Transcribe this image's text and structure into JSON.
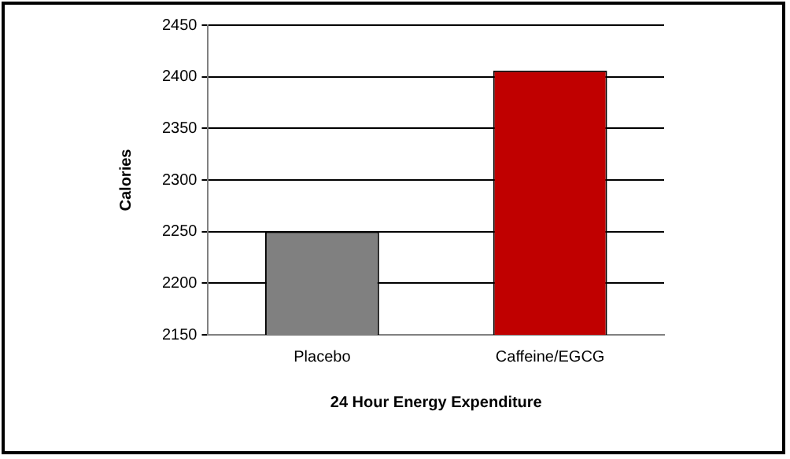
{
  "chart_data": {
    "type": "bar",
    "xlabel": "24 Hour Energy Expenditure",
    "ylabel": "Calories",
    "categories": [
      "Placebo",
      "Caffeine/EGCG"
    ],
    "values": [
      2250,
      2406
    ],
    "colors": [
      "#808080",
      "#c00000"
    ],
    "ylim": [
      2150,
      2450
    ],
    "yticks": [
      2150,
      2200,
      2250,
      2300,
      2350,
      2400,
      2450
    ],
    "grid": "y",
    "legend": false
  }
}
